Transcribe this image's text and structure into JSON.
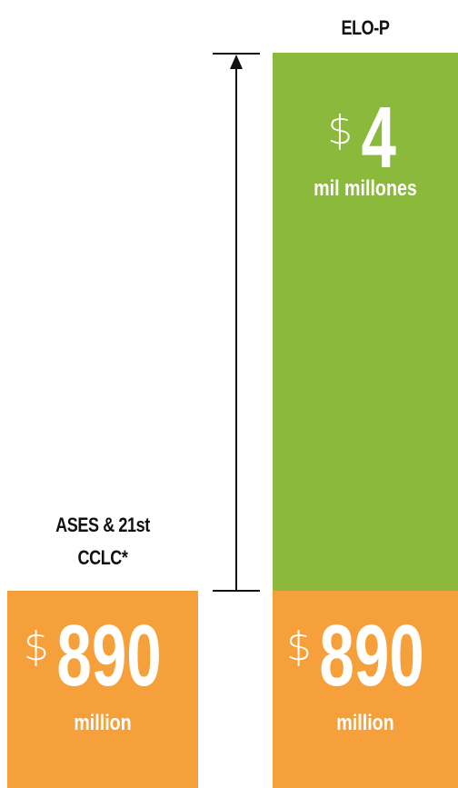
{
  "chart_data": {
    "type": "bar",
    "categories": [
      "ASES & 21st CCLC*",
      "ELO-P"
    ],
    "series": [
      {
        "values": [
          0.89,
          0.89
        ],
        "color": "#f5a03a"
      },
      {
        "values": [
          0,
          4
        ],
        "color": "#8ab93c"
      }
    ],
    "stacked": true,
    "title": "",
    "xlabel": "",
    "ylabel": ""
  },
  "labels": {
    "right_category": "ELO-P",
    "left_category_line1": "ASES & 21st",
    "left_category_line2": "CCLC*"
  },
  "amounts": {
    "orange_left": {
      "symbol": "$",
      "value": "890",
      "unit": "million"
    },
    "orange_right": {
      "symbol": "$",
      "value": "890",
      "unit": "million"
    },
    "green_right": {
      "symbol": "$",
      "value": "4",
      "unit": "mil millones"
    }
  },
  "colors": {
    "orange": "#f5a03a",
    "green": "#8ab93c",
    "text_dark": "#111111"
  },
  "arrow": {
    "direction": "up",
    "icon": "up-arrow-icon"
  }
}
